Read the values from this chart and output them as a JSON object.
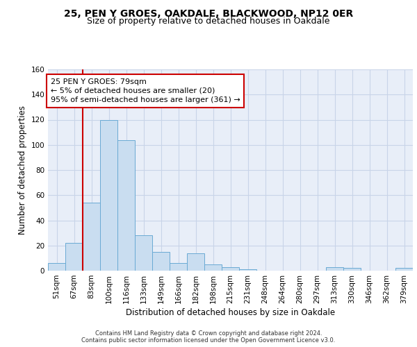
{
  "title1": "25, PEN Y GROES, OAKDALE, BLACKWOOD, NP12 0ER",
  "title2": "Size of property relative to detached houses in Oakdale",
  "xlabel": "Distribution of detached houses by size in Oakdale",
  "ylabel": "Number of detached properties",
  "categories": [
    "51sqm",
    "67sqm",
    "83sqm",
    "100sqm",
    "116sqm",
    "133sqm",
    "149sqm",
    "166sqm",
    "182sqm",
    "198sqm",
    "215sqm",
    "231sqm",
    "248sqm",
    "264sqm",
    "280sqm",
    "297sqm",
    "313sqm",
    "330sqm",
    "346sqm",
    "362sqm",
    "379sqm"
  ],
  "values": [
    6,
    22,
    54,
    120,
    104,
    28,
    15,
    6,
    14,
    5,
    3,
    1,
    0,
    0,
    0,
    0,
    3,
    2,
    0,
    0,
    2
  ],
  "bar_color": "#c9ddf0",
  "bar_edge_color": "#6aaad4",
  "grid_color": "#c8d4e8",
  "background_color": "#e8eef8",
  "annotation_line1": "25 PEN Y GROES: 79sqm",
  "annotation_line2": "← 5% of detached houses are smaller (20)",
  "annotation_line3": "95% of semi-detached houses are larger (361) →",
  "annotation_box_color": "#ffffff",
  "annotation_box_edge": "#cc0000",
  "vline_color": "#cc0000",
  "vline_x": 1.5,
  "ylim": [
    0,
    160
  ],
  "yticks": [
    0,
    20,
    40,
    60,
    80,
    100,
    120,
    140,
    160
  ],
  "footer": "Contains HM Land Registry data © Crown copyright and database right 2024.\nContains public sector information licensed under the Open Government Licence v3.0.",
  "title_fontsize": 10,
  "subtitle_fontsize": 9,
  "tick_fontsize": 7.5,
  "ylabel_fontsize": 8.5,
  "xlabel_fontsize": 8.5,
  "annotation_fontsize": 8,
  "footer_fontsize": 6
}
